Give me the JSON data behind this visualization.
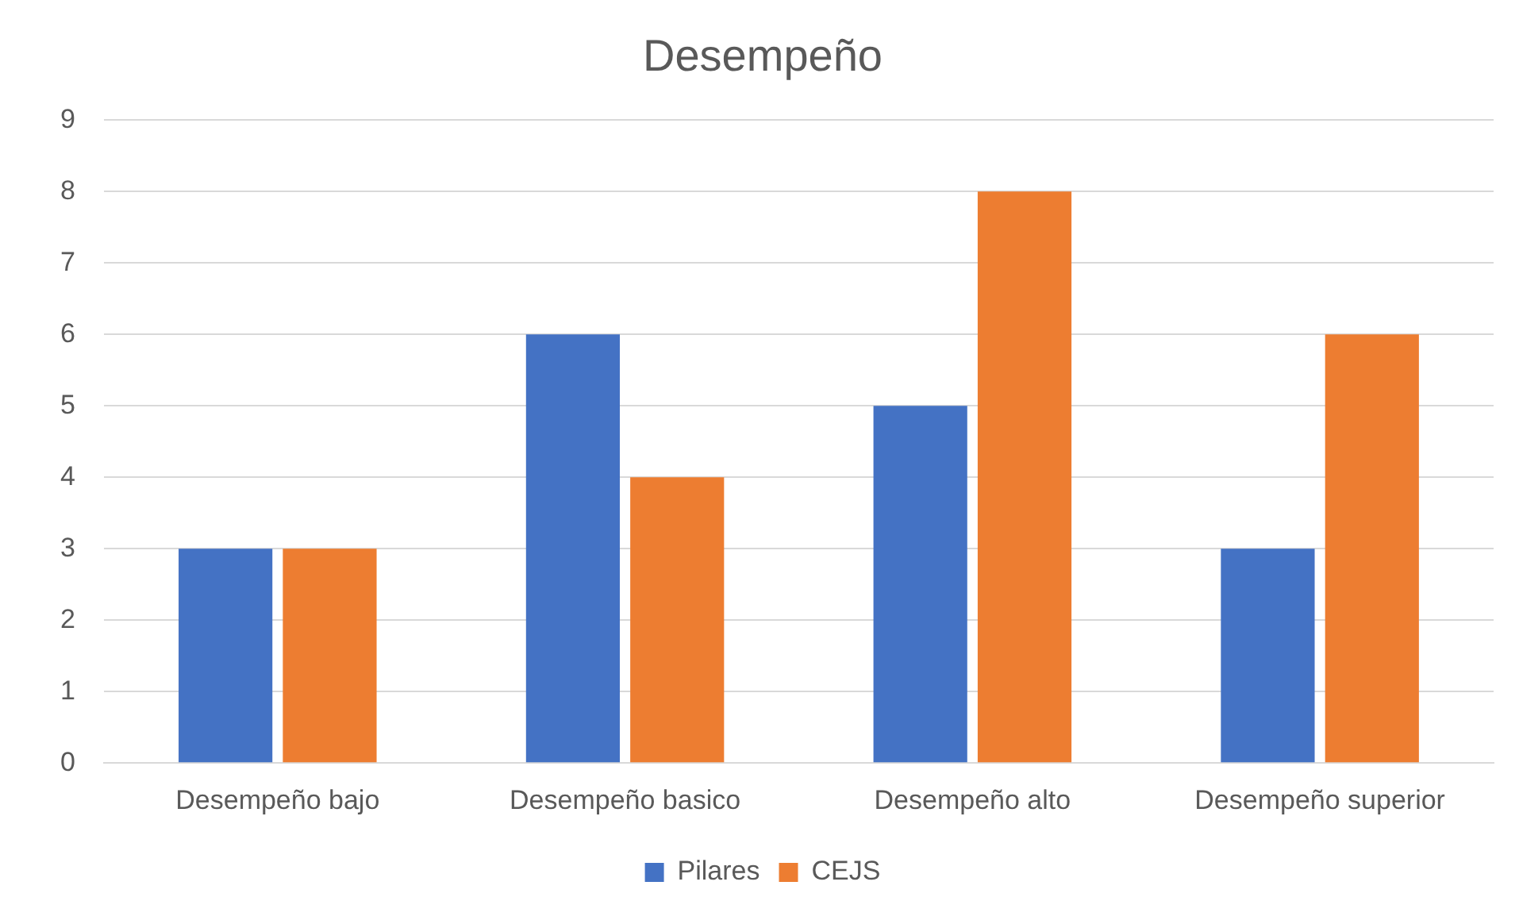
{
  "chart_data": {
    "type": "bar",
    "title": "Desempeño",
    "categories": [
      "Desempeño bajo",
      "Desempeño basico",
      "Desempeño alto",
      "Desempeño superior"
    ],
    "series": [
      {
        "name": "Pilares",
        "color": "#4472c4",
        "values": [
          3,
          6,
          5,
          3
        ]
      },
      {
        "name": "CEJS",
        "color": "#ed7d31",
        "values": [
          3,
          4,
          8,
          6
        ]
      }
    ],
    "ylim": [
      0,
      9
    ],
    "yticks": [
      0,
      1,
      2,
      3,
      4,
      5,
      6,
      7,
      8,
      9
    ],
    "grid": "y",
    "legend": "bottom"
  }
}
